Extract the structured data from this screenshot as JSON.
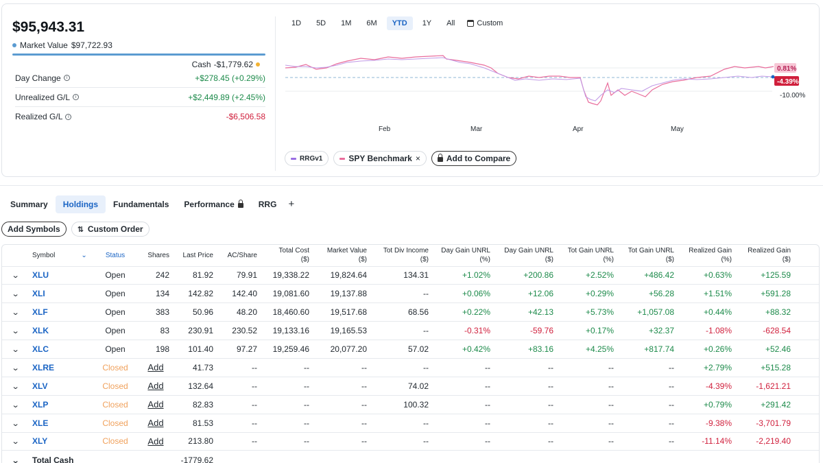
{
  "summary": {
    "portfolio_value": "$95,943.31",
    "market_value_label": "Market Value",
    "market_value": "$97,722.93",
    "cash_label": "Cash",
    "cash_value": "-$1,779.62",
    "day_change_label": "Day Change",
    "day_change_value": "+$278.45 (+0.29%)",
    "unrealized_label": "Unrealized G/L",
    "unrealized_value": "+$2,449.89 (+2.45%)",
    "realized_label": "Realized G/L",
    "realized_value": "-$6,506.58",
    "colors": {
      "market_value_dot": "#5b9bd1",
      "cash_dot": "#f2b233",
      "positive": "#1c8a4a",
      "negative": "#d01f3c"
    }
  },
  "chart": {
    "ranges": [
      "1D",
      "5D",
      "1M",
      "6M",
      "YTD",
      "1Y",
      "All"
    ],
    "active_range": "YTD",
    "custom_label": "Custom",
    "months": [
      "Feb",
      "Mar",
      "Apr",
      "May"
    ],
    "badge_1": "0.81%",
    "badge_2": "-4.39%",
    "y_label": "-10.00%",
    "series_colors": {
      "rrgv1": "#9a6ee3",
      "spy": "#e96c9b"
    },
    "legend": [
      {
        "label": "RRGv1"
      },
      {
        "label": "SPY Benchmark",
        "close": "×"
      }
    ],
    "add_compare_label": "Add to Compare"
  },
  "tabs": {
    "items": [
      "Summary",
      "Holdings",
      "Fundamentals",
      "Performance",
      "RRG"
    ],
    "active": "Holdings",
    "plus": "+"
  },
  "actions": {
    "add_symbols": "Add Symbols",
    "custom_order": "Custom Order"
  },
  "table": {
    "headers": {
      "symbol": "Symbol",
      "status": "Status",
      "shares": "Shares",
      "last_price": "Last Price",
      "ac_share": "AC/Share",
      "total_cost": [
        "Total Cost",
        "($)"
      ],
      "market_value": [
        "Market Value",
        "($)"
      ],
      "tot_div": [
        "Tot Div Income",
        "($)"
      ],
      "day_gain_pct": [
        "Day Gain UNRL",
        "(%)"
      ],
      "day_gain_usd": [
        "Day Gain UNRL",
        "($)"
      ],
      "tot_gain_pct": [
        "Tot Gain UNRL",
        "(%)"
      ],
      "tot_gain_usd": [
        "Tot Gain UNRL",
        "($)"
      ],
      "realized_pct": [
        "Realized Gain",
        "(%)"
      ],
      "realized_usd": [
        "Realized Gain",
        "($)"
      ]
    },
    "rows": [
      {
        "symbol": "XLU",
        "status": "Open",
        "shares": "242",
        "last": "81.92",
        "ac": "79.91",
        "cost": "19,338.22",
        "mv": "19,824.64",
        "div": "134.31",
        "dgp": "+1.02%",
        "dgu": "+200.86",
        "tgp": "+2.52%",
        "tgu": "+486.42",
        "rgp": "+0.63%",
        "rgu": "+125.59"
      },
      {
        "symbol": "XLI",
        "status": "Open",
        "shares": "134",
        "last": "142.82",
        "ac": "142.40",
        "cost": "19,081.60",
        "mv": "19,137.88",
        "div": "--",
        "dgp": "+0.06%",
        "dgu": "+12.06",
        "tgp": "+0.29%",
        "tgu": "+56.28",
        "rgp": "+1.51%",
        "rgu": "+591.28"
      },
      {
        "symbol": "XLF",
        "status": "Open",
        "shares": "383",
        "last": "50.96",
        "ac": "48.20",
        "cost": "18,460.60",
        "mv": "19,517.68",
        "div": "68.56",
        "dgp": "+0.22%",
        "dgu": "+42.13",
        "tgp": "+5.73%",
        "tgu": "+1,057.08",
        "rgp": "+0.44%",
        "rgu": "+88.32"
      },
      {
        "symbol": "XLK",
        "status": "Open",
        "shares": "83",
        "last": "230.91",
        "ac": "230.52",
        "cost": "19,133.16",
        "mv": "19,165.53",
        "div": "--",
        "dgp": "-0.31%",
        "dgu": "-59.76",
        "tgp": "+0.17%",
        "tgu": "+32.37",
        "rgp": "-1.08%",
        "rgu": "-628.54"
      },
      {
        "symbol": "XLC",
        "status": "Open",
        "shares": "198",
        "last": "101.40",
        "ac": "97.27",
        "cost": "19,259.46",
        "mv": "20,077.20",
        "div": "57.02",
        "dgp": "+0.42%",
        "dgu": "+83.16",
        "tgp": "+4.25%",
        "tgu": "+817.74",
        "rgp": "+0.26%",
        "rgu": "+52.46"
      },
      {
        "symbol": "XLRE",
        "status": "Closed",
        "shares": "Add",
        "last": "41.73",
        "ac": "--",
        "cost": "--",
        "mv": "--",
        "div": "--",
        "dgp": "--",
        "dgu": "--",
        "tgp": "--",
        "tgu": "--",
        "rgp": "+2.79%",
        "rgu": "+515.28"
      },
      {
        "symbol": "XLV",
        "status": "Closed",
        "shares": "Add",
        "last": "132.64",
        "ac": "--",
        "cost": "--",
        "mv": "--",
        "div": "74.02",
        "dgp": "--",
        "dgu": "--",
        "tgp": "--",
        "tgu": "--",
        "rgp": "-4.39%",
        "rgu": "-1,621.21"
      },
      {
        "symbol": "XLP",
        "status": "Closed",
        "shares": "Add",
        "last": "82.83",
        "ac": "--",
        "cost": "--",
        "mv": "--",
        "div": "100.32",
        "dgp": "--",
        "dgu": "--",
        "tgp": "--",
        "tgu": "--",
        "rgp": "+0.79%",
        "rgu": "+291.42"
      },
      {
        "symbol": "XLE",
        "status": "Closed",
        "shares": "Add",
        "last": "81.53",
        "ac": "--",
        "cost": "--",
        "mv": "--",
        "div": "--",
        "dgp": "--",
        "dgu": "--",
        "tgp": "--",
        "tgu": "--",
        "rgp": "-9.38%",
        "rgu": "-3,701.79"
      },
      {
        "symbol": "XLY",
        "status": "Closed",
        "shares": "Add",
        "last": "213.80",
        "ac": "--",
        "cost": "--",
        "mv": "--",
        "div": "--",
        "dgp": "--",
        "dgu": "--",
        "tgp": "--",
        "tgu": "--",
        "rgp": "-11.14%",
        "rgu": "-2,219.40"
      }
    ],
    "total_cash": {
      "label": "Total Cash",
      "value": "-1779.62"
    }
  }
}
